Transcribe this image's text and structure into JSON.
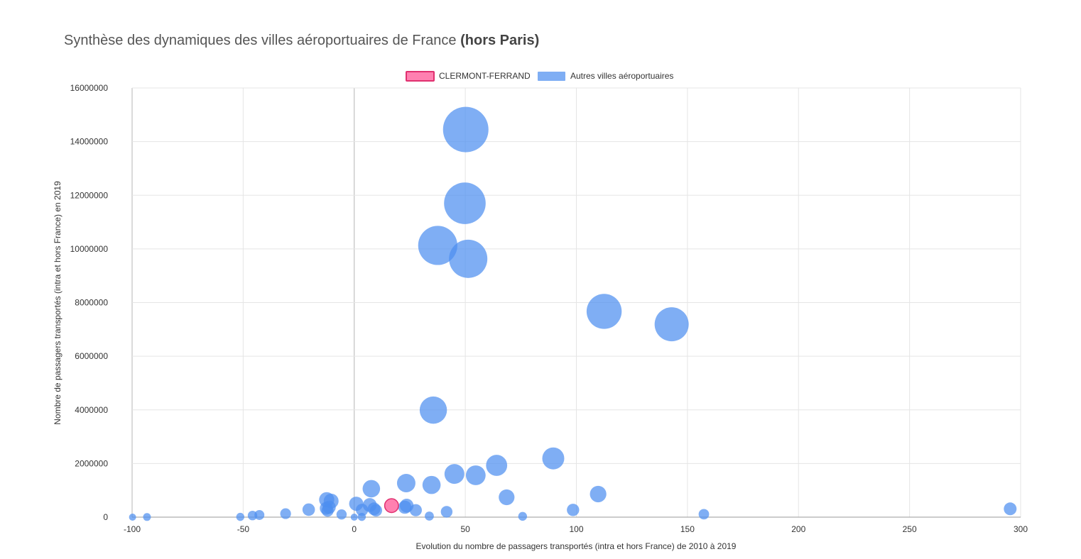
{
  "title": {
    "main": "Synthèse des dynamiques des villes aéroportuaires de France",
    "bold": "(hors Paris)"
  },
  "colors": {
    "clermont_fill": "#ff80b0",
    "clermont_stroke": "#e0306f",
    "others_fill": "#4d8ff0",
    "others_fill_opacity": 0.72,
    "grid": "#e5e5e5",
    "axis": "#999999",
    "text": "#333333"
  },
  "chart_data": {
    "type": "bubble",
    "xlabel": "Evolution du nombre de passagers transportés (intra et hors France) de 2010 à 2019",
    "ylabel": "Nombre de passagers transportés (intra et hors France) en 2019",
    "xlim": [
      -100,
      300
    ],
    "ylim": [
      0,
      16000000
    ],
    "x_ticks": [
      -100,
      -50,
      0,
      50,
      100,
      150,
      200,
      250,
      300
    ],
    "x_tick_labels": [
      "-100",
      "-50",
      "0",
      "50",
      "100",
      "150",
      "200",
      "250",
      "300"
    ],
    "y_ticks": [
      0,
      2000000,
      4000000,
      6000000,
      8000000,
      10000000,
      12000000,
      14000000,
      16000000
    ],
    "y_tick_labels": [
      "0",
      "2000000",
      "4000000",
      "6000000",
      "8000000",
      "10000000",
      "12000000",
      "14000000",
      "16000000"
    ],
    "grid": true,
    "legend_position": "top",
    "series": [
      {
        "name": "CLERMONT-FERRAND",
        "points": [
          [
            16.8,
            430000
          ]
        ]
      },
      {
        "name": "Autres villes aéroportuaires",
        "points": [
          [
            50.2,
            14450000
          ],
          [
            49.8,
            11700000
          ],
          [
            37.6,
            10130000
          ],
          [
            51.3,
            9630000
          ],
          [
            112.5,
            7670000
          ],
          [
            142.9,
            7190000
          ],
          [
            35.6,
            3990000
          ],
          [
            89.6,
            2190000
          ],
          [
            64.1,
            1930000
          ],
          [
            45.1,
            1610000
          ],
          [
            54.7,
            1560000
          ],
          [
            23.4,
            1270000
          ],
          [
            34.8,
            1200000
          ],
          [
            7.7,
            1060000
          ],
          [
            109.8,
            860000
          ],
          [
            68.6,
            740000
          ],
          [
            -12.4,
            650000
          ],
          [
            -10.4,
            600000
          ],
          [
            0.9,
            500000
          ],
          [
            7.0,
            450000
          ],
          [
            23.6,
            430000
          ],
          [
            -11.3,
            370000
          ],
          [
            -12.6,
            330000
          ],
          [
            8.9,
            310000
          ],
          [
            3.5,
            270000
          ],
          [
            9.8,
            250000
          ],
          [
            22.8,
            370000
          ],
          [
            27.7,
            260000
          ],
          [
            -20.5,
            280000
          ],
          [
            -12.0,
            240000
          ],
          [
            41.6,
            200000
          ],
          [
            -30.9,
            130000
          ],
          [
            -5.7,
            100000
          ],
          [
            -42.7,
            80000
          ],
          [
            -45.8,
            60000
          ],
          [
            157.4,
            110000
          ],
          [
            295.3,
            310000
          ],
          [
            98.5,
            270000
          ],
          [
            -51.3,
            10000
          ],
          [
            -93.3,
            5000
          ],
          [
            3.4,
            10000
          ],
          [
            33.8,
            40000
          ],
          [
            75.8,
            30000
          ],
          [
            -99.8,
            0
          ],
          [
            0.0,
            0
          ]
        ]
      }
    ]
  }
}
